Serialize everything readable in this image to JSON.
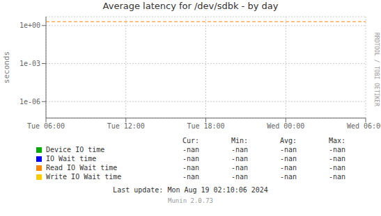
{
  "chart_data": {
    "type": "line",
    "title": "Average latency for /dev/sdbk - by day",
    "y_label": "seconds",
    "categories": [
      "Tue 06:00",
      "Tue 12:00",
      "Tue 18:00",
      "Wed 00:00",
      "Wed 06:00"
    ],
    "series": [
      {
        "name": "Device IO time",
        "color": "#00aa00",
        "values": [
          null,
          null,
          null,
          null,
          null
        ],
        "stats": [
          "-nan",
          "-nan",
          "-nan",
          "-nan"
        ]
      },
      {
        "name": "IO Wait time",
        "color": "#0000ff",
        "values": [
          null,
          null,
          null,
          null,
          null
        ],
        "stats": [
          "-nan",
          "-nan",
          "-nan",
          "-nan"
        ]
      },
      {
        "name": "Read IO Wait time",
        "color": "#ff8800",
        "values": [
          null,
          null,
          null,
          null,
          null
        ],
        "stats": [
          "-nan",
          "-nan",
          "-nan",
          "-nan"
        ]
      },
      {
        "name": "Write IO Wait time",
        "color": "#ffcc00",
        "values": [
          null,
          null,
          null,
          null,
          null
        ],
        "stats": [
          "-nan",
          "-nan",
          "-nan",
          "-nan"
        ]
      }
    ],
    "stat_columns": [
      "Cur:",
      "Min:",
      "Avg:",
      "Max:"
    ],
    "reference_lines": [
      {
        "value": 2.0,
        "color": "#ff8800",
        "line_style": "dashed"
      }
    ],
    "log": "y",
    "ylim": [
      5e-08,
      5.0
    ],
    "yticks": [
      {
        "value": 1e-06,
        "label": "1e-06"
      },
      {
        "value": 0.001,
        "label": "1e-03"
      },
      {
        "value": 1.0,
        "label": "1e+00"
      }
    ],
    "grid": true,
    "annotations": [
      "Last update: Mon Aug 19 02:10:06 2024",
      "Munin 2.0.73",
      "RRDTOOL / TOBI OETIKER"
    ]
  }
}
